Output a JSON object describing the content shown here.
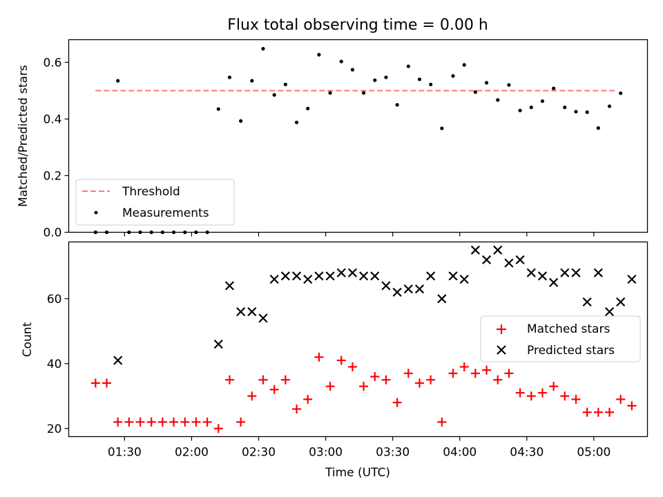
{
  "chart_data": [
    {
      "type": "scatter",
      "title": "Flux total observing time = 0.00 h",
      "xlabel": "",
      "ylabel": "Matched/Predicted stars",
      "x_unit": "minutes after 00:00 UTC",
      "xlim": [
        65,
        324
      ],
      "ylim": [
        0.0,
        0.68
      ],
      "yticks": [
        0.0,
        0.2,
        0.4,
        0.6
      ],
      "ytick_labels": [
        "0.0",
        "0.2",
        "0.4",
        "0.6"
      ],
      "grid": false,
      "legend_position": "lower-left",
      "series": [
        {
          "name": "Threshold",
          "style": "dashed-line",
          "color": "#ff7f7f",
          "x": [
            77,
            310
          ],
          "y": [
            0.5,
            0.5
          ]
        },
        {
          "name": "Measurements",
          "style": "point",
          "color": "#000000",
          "x": [
            77,
            82,
            87,
            92,
            97,
            102,
            107,
            112,
            117,
            122,
            127,
            132,
            137,
            142,
            147,
            152,
            157,
            162,
            167,
            172,
            177,
            182,
            187,
            192,
            197,
            202,
            207,
            212,
            217,
            222,
            227,
            232,
            237,
            242,
            247,
            252,
            257,
            262,
            267,
            272,
            277,
            282,
            287,
            292,
            297,
            302,
            307,
            312
          ],
          "y": [
            0.0,
            0.0,
            0.535,
            0.0,
            0.0,
            0.0,
            0.0,
            0.0,
            0.0,
            0.0,
            0.0,
            0.435,
            0.547,
            0.393,
            0.535,
            0.648,
            0.485,
            0.522,
            0.388,
            0.437,
            0.627,
            0.492,
            0.603,
            0.574,
            0.492,
            0.537,
            0.547,
            0.45,
            0.586,
            0.54,
            0.522,
            0.367,
            0.552,
            0.591,
            0.495,
            0.528,
            0.467,
            0.52,
            0.43,
            0.441,
            0.463,
            0.508,
            0.441,
            0.426,
            0.424,
            0.368,
            0.445,
            0.491
          ]
        }
      ]
    },
    {
      "type": "scatter",
      "title": "",
      "xlabel": "Time (UTC)",
      "ylabel": "Count",
      "x_unit": "minutes after 00:00 UTC",
      "xlim": [
        65,
        324
      ],
      "ylim": [
        17.5,
        77.5
      ],
      "yticks": [
        20,
        40,
        60
      ],
      "ytick_labels": [
        "20",
        "40",
        "60"
      ],
      "xticks": [
        90,
        120,
        150,
        180,
        210,
        240,
        270,
        300
      ],
      "xtick_labels": [
        "01:30",
        "02:00",
        "02:30",
        "03:00",
        "03:30",
        "04:00",
        "04:30",
        "05:00"
      ],
      "grid": false,
      "legend_position": "center-right",
      "series": [
        {
          "name": "Matched stars",
          "marker": "+",
          "color": "#ff0000",
          "x": [
            77,
            82,
            87,
            92,
            97,
            102,
            107,
            112,
            117,
            122,
            127,
            132,
            137,
            142,
            147,
            152,
            157,
            162,
            167,
            172,
            177,
            182,
            187,
            192,
            197,
            202,
            207,
            212,
            217,
            222,
            227,
            232,
            237,
            242,
            247,
            252,
            257,
            262,
            267,
            272,
            277,
            282,
            287,
            292,
            297,
            302,
            307,
            312,
            317
          ],
          "y": [
            34,
            34,
            22,
            22,
            22,
            22,
            22,
            22,
            22,
            22,
            22,
            20,
            35,
            22,
            30,
            35,
            32,
            35,
            26,
            29,
            42,
            33,
            41,
            39,
            33,
            36,
            35,
            28,
            37,
            34,
            35,
            22,
            37,
            39,
            37,
            38,
            35,
            37,
            31,
            30,
            31,
            33,
            30,
            29,
            25,
            25,
            25,
            29,
            27
          ]
        },
        {
          "name": "Predicted stars",
          "marker": "x",
          "color": "#000000",
          "x": [
            87,
            132,
            137,
            142,
            147,
            152,
            157,
            162,
            167,
            172,
            177,
            182,
            187,
            192,
            197,
            202,
            207,
            212,
            217,
            222,
            227,
            232,
            237,
            242,
            247,
            252,
            257,
            262,
            267,
            272,
            277,
            282,
            287,
            292,
            297,
            302,
            307,
            312,
            317
          ],
          "y": [
            41,
            46,
            64,
            56,
            56,
            54,
            66,
            67,
            67,
            66,
            67,
            67,
            68,
            68,
            67,
            67,
            64,
            62,
            63,
            63,
            67,
            60,
            67,
            66,
            75,
            72,
            75,
            71,
            72,
            68,
            67,
            65,
            68,
            68,
            59,
            68,
            56,
            59,
            66
          ]
        }
      ]
    }
  ]
}
